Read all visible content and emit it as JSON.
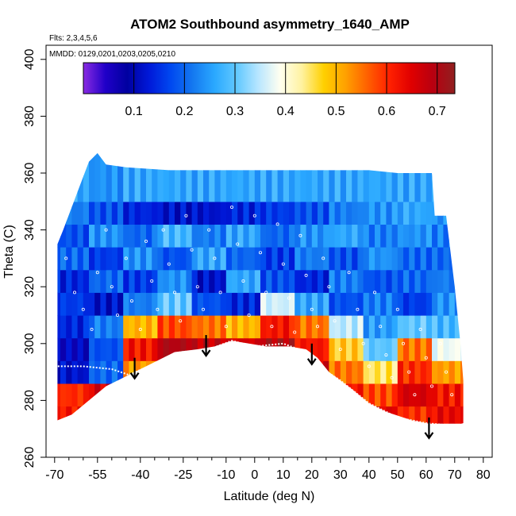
{
  "chart_data": {
    "type": "heatmap",
    "title": "ATOM2 Southbound asymmetry_1640_AMP",
    "flights_note": "Flts: 2,3,4,5,6",
    "dates_note": "MMDD: 0129,0201,0203,0205,0210",
    "xlabel": "Latitude (deg N)",
    "ylabel": "Theta (C)",
    "xlim": [
      -73,
      83
    ],
    "ylim": [
      260,
      405
    ],
    "x_ticks": [
      "-70",
      "-55",
      "-40",
      "-25",
      "-10",
      "0",
      "10",
      "20",
      "30",
      "40",
      "50",
      "60",
      "70",
      "80"
    ],
    "x_tick_values": [
      -70,
      -55,
      -40,
      -25,
      -10,
      0,
      10,
      20,
      30,
      40,
      50,
      60,
      70,
      80
    ],
    "y_ticks": [
      "260",
      "280",
      "300",
      "320",
      "340",
      "360",
      "380",
      "400"
    ],
    "y_tick_values": [
      260,
      280,
      300,
      320,
      340,
      360,
      380,
      400
    ],
    "colorbar": {
      "range": [
        0.0,
        0.735
      ],
      "tick_labels": [
        "0.1",
        "0.2",
        "0.3",
        "0.4",
        "0.5",
        "0.6",
        "0.7"
      ],
      "tick_values": [
        0.1,
        0.2,
        0.3,
        0.4,
        0.5,
        0.6,
        0.7
      ],
      "colors": [
        "#8a2be2",
        "#2000c8",
        "#0000a0",
        "#0018d8",
        "#0048f0",
        "#1478f0",
        "#2aa8ff",
        "#60c8ff",
        "#b8e6ff",
        "#fffff0",
        "#fff2a0",
        "#ffd000",
        "#ffa000",
        "#ff6000",
        "#ff2000",
        "#e00000",
        "#b80010",
        "#902020"
      ]
    },
    "field_top": [
      [
        -69,
        335
      ],
      [
        -67,
        340
      ],
      [
        -64,
        348
      ],
      [
        -61,
        356
      ],
      [
        -58,
        364
      ],
      [
        -55,
        367
      ],
      [
        -52,
        363
      ],
      [
        -45,
        362
      ],
      [
        -30,
        361
      ],
      [
        -20,
        361
      ],
      [
        -10,
        361
      ],
      [
        0,
        361
      ],
      [
        20,
        361
      ],
      [
        40,
        361
      ],
      [
        50,
        360
      ],
      [
        62,
        360
      ],
      [
        63,
        345
      ],
      [
        67,
        345
      ],
      [
        70,
        320
      ],
      [
        72,
        300
      ],
      [
        73,
        287
      ]
    ],
    "field_bottom": [
      [
        73,
        272
      ],
      [
        70,
        271
      ],
      [
        66,
        271
      ],
      [
        60,
        272
      ],
      [
        55,
        273
      ],
      [
        46,
        276
      ],
      [
        40,
        279
      ],
      [
        34,
        284
      ],
      [
        30,
        287
      ],
      [
        26,
        290
      ],
      [
        22,
        295
      ],
      [
        18,
        298
      ],
      [
        12,
        299
      ],
      [
        4,
        299
      ],
      [
        -2,
        300
      ],
      [
        -8,
        301
      ],
      [
        -14,
        299
      ],
      [
        -20,
        298
      ],
      [
        -28,
        297
      ],
      [
        -34,
        294
      ],
      [
        -40,
        291
      ],
      [
        -44,
        289
      ],
      [
        -52,
        285
      ],
      [
        -58,
        280
      ],
      [
        -64,
        275
      ],
      [
        -69,
        273
      ]
    ],
    "surface_line": [
      [
        -70,
        292
      ],
      [
        -60,
        292
      ],
      [
        -50,
        291
      ],
      [
        -44,
        289
      ],
      [
        -35,
        293
      ],
      [
        -26,
        297
      ],
      [
        -16,
        298
      ],
      [
        -8,
        301
      ],
      [
        0,
        299
      ],
      [
        10,
        300
      ],
      [
        18,
        297
      ],
      [
        24,
        291
      ],
      [
        30,
        287
      ],
      [
        40,
        279
      ],
      [
        50,
        274
      ],
      [
        60,
        272
      ],
      [
        70,
        271
      ]
    ],
    "arrows": [
      [
        -42,
        295
      ],
      [
        -17,
        303
      ],
      [
        20,
        300
      ],
      [
        61,
        274
      ]
    ],
    "samples": [
      [
        -66,
        330
      ],
      [
        -63,
        318
      ],
      [
        -60,
        312
      ],
      [
        -57,
        305
      ],
      [
        -55,
        325
      ],
      [
        -52,
        340
      ],
      [
        -50,
        320
      ],
      [
        -48,
        310
      ],
      [
        -45,
        330
      ],
      [
        -43,
        315
      ],
      [
        -40,
        305
      ],
      [
        -38,
        336
      ],
      [
        -36,
        322
      ],
      [
        -34,
        312
      ],
      [
        -32,
        340
      ],
      [
        -30,
        328
      ],
      [
        -28,
        318
      ],
      [
        -26,
        308
      ],
      [
        -24,
        345
      ],
      [
        -22,
        333
      ],
      [
        -20,
        320
      ],
      [
        -18,
        312
      ],
      [
        -16,
        340
      ],
      [
        -14,
        330
      ],
      [
        -12,
        318
      ],
      [
        -10,
        306
      ],
      [
        -8,
        348
      ],
      [
        -6,
        335
      ],
      [
        -4,
        322
      ],
      [
        -2,
        310
      ],
      [
        0,
        345
      ],
      [
        2,
        332
      ],
      [
        4,
        318
      ],
      [
        6,
        306
      ],
      [
        8,
        342
      ],
      [
        10,
        328
      ],
      [
        12,
        316
      ],
      [
        14,
        304
      ],
      [
        16,
        338
      ],
      [
        18,
        324
      ],
      [
        20,
        312
      ],
      [
        22,
        306
      ],
      [
        24,
        330
      ],
      [
        26,
        320
      ],
      [
        28,
        308
      ],
      [
        30,
        298
      ],
      [
        33,
        325
      ],
      [
        36,
        312
      ],
      [
        38,
        300
      ],
      [
        40,
        292
      ],
      [
        42,
        318
      ],
      [
        44,
        306
      ],
      [
        46,
        296
      ],
      [
        48,
        288
      ],
      [
        50,
        312
      ],
      [
        52,
        300
      ],
      [
        54,
        290
      ],
      [
        56,
        282
      ],
      [
        58,
        305
      ],
      [
        60,
        295
      ],
      [
        62,
        285
      ],
      [
        65,
        300
      ],
      [
        67,
        290
      ],
      [
        69,
        282
      ]
    ],
    "field_cells": [
      {
        "y": [
          272,
          278
        ],
        "pattern": [
          0.62,
          0.66,
          0.68,
          0.67,
          0.65,
          0.66,
          0.68,
          0.7,
          0.68,
          0.65,
          0.6,
          0.64
        ]
      },
      {
        "y": [
          278,
          286
        ],
        "pattern": [
          0.6,
          0.66,
          0.7,
          0.68,
          0.66,
          0.7,
          0.72,
          0.68,
          0.62,
          0.58,
          0.66,
          0.62
        ]
      },
      {
        "y": [
          286,
          294
        ],
        "pattern": [
          0.12,
          0.2,
          0.52,
          0.68,
          0.7,
          0.72,
          0.7,
          0.66,
          0.55,
          0.45,
          0.6,
          0.52
        ]
      },
      {
        "y": [
          294,
          302
        ],
        "pattern": [
          0.1,
          0.18,
          0.62,
          0.7,
          0.68,
          0.66,
          0.7,
          0.62,
          0.48,
          0.3,
          0.55,
          0.38
        ]
      },
      {
        "y": [
          302,
          310
        ],
        "pattern": [
          0.14,
          0.22,
          0.5,
          0.58,
          0.55,
          0.5,
          0.62,
          0.55,
          0.35,
          0.25,
          0.3,
          0.28
        ]
      },
      {
        "y": [
          310,
          318
        ],
        "pattern": [
          0.16,
          0.12,
          0.22,
          0.3,
          0.18,
          0.14,
          0.36,
          0.26,
          0.18,
          0.22,
          0.16,
          0.24
        ]
      },
      {
        "y": [
          318,
          326
        ],
        "pattern": [
          0.14,
          0.2,
          0.16,
          0.24,
          0.12,
          0.26,
          0.18,
          0.14,
          0.22,
          0.18,
          0.2,
          0.22
        ]
      },
      {
        "y": [
          326,
          334
        ],
        "pattern": [
          0.2,
          0.16,
          0.24,
          0.18,
          0.26,
          0.2,
          0.16,
          0.22,
          0.18,
          0.24,
          0.2,
          0.2
        ]
      },
      {
        "y": [
          334,
          342
        ],
        "pattern": [
          0.18,
          0.24,
          0.2,
          0.28,
          0.22,
          0.26,
          0.2,
          0.24,
          0.26,
          0.22,
          0.24,
          0.22
        ]
      },
      {
        "y": [
          342,
          350
        ],
        "pattern": [
          0.22,
          0.18,
          0.14,
          0.12,
          0.12,
          0.14,
          0.16,
          0.18,
          0.22,
          0.24,
          0.26,
          0.24
        ]
      },
      {
        "y": [
          350,
          368
        ],
        "pattern": [
          0.26,
          0.24,
          0.26,
          0.26,
          0.26,
          0.26,
          0.26,
          0.26,
          0.26,
          0.26,
          0.26,
          0.26
        ]
      }
    ]
  }
}
